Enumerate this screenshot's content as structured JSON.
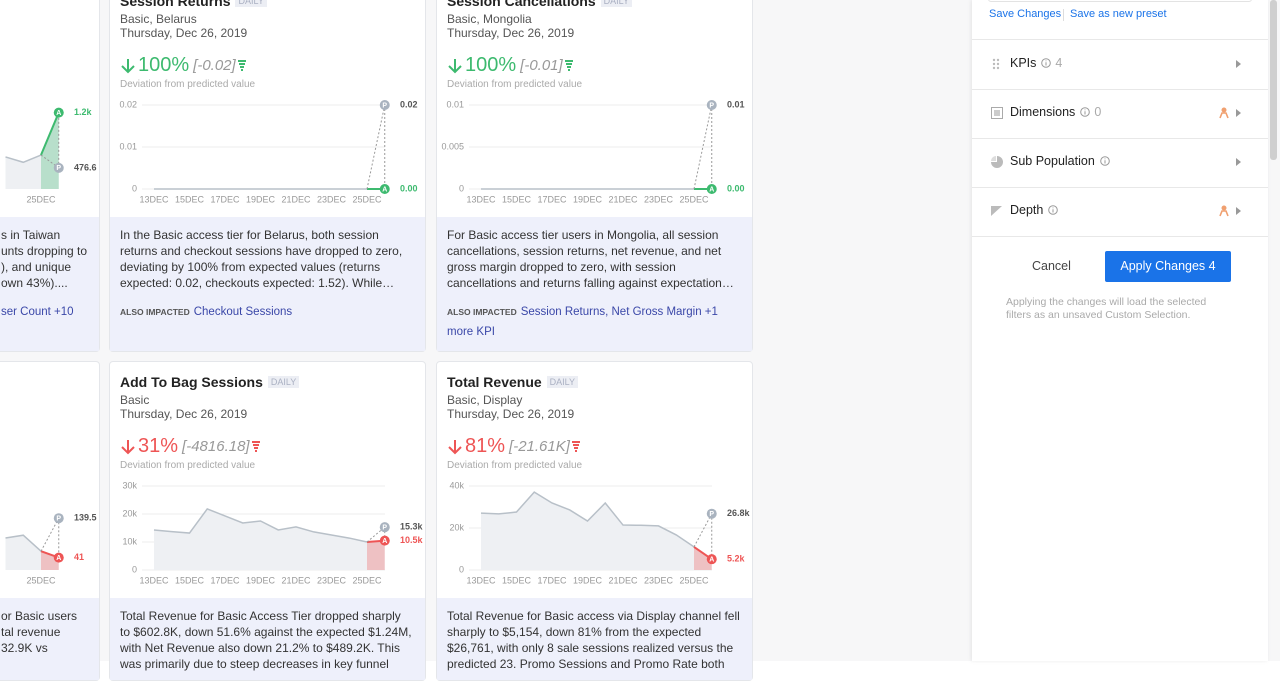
{
  "markers": {
    "predicted": "P",
    "actual": "A"
  },
  "cards": [
    {
      "chart": {
        "color": "#3dba6f",
        "ylim": [
          200,
          1300
        ],
        "categories": [
          null,
          null,
          "25DEC",
          null
        ],
        "values": [
          620,
          550,
          645,
          1200
        ],
        "actual_label": "1.2k",
        "predicted": 476.6
      },
      "summary_lines": [
        "s in Taiwan",
        "unts dropping to",
        "), and unique",
        "own 43%)...."
      ],
      "also_impacted": "ser Count +10"
    },
    {
      "title": "Session Returns",
      "frequency": "DAILY",
      "segment": "Basic, Belarus",
      "date": "Thursday, Dec 26, 2019",
      "change": "100%",
      "delta": "[-0.02]",
      "deviation_label": "Deviation from predicted value",
      "chart": {
        "color": "#3dba6f",
        "ylim": [
          0,
          0.02
        ],
        "yticks": [
          0,
          0.01,
          0.02
        ],
        "categories": [
          "13DEC",
          null,
          "15DEC",
          null,
          "17DEC",
          null,
          "19DEC",
          null,
          "21DEC",
          null,
          "23DEC",
          null,
          "25DEC",
          null
        ],
        "values": [
          0,
          0,
          0,
          0,
          0,
          0,
          0,
          0,
          0,
          0,
          0,
          0,
          0,
          0
        ],
        "actual_label": "0.00",
        "predicted": 0.02
      },
      "summary_lines": [
        "In the Basic access tier for Belarus, both session",
        "returns and checkout sessions have dropped to zero,",
        "deviating by 100% from expected values (returns",
        "expected: 0.02, checkouts expected: 1.52). While…"
      ],
      "also_impacted_label": "ALSO IMPACTED",
      "also_impacted": "Checkout Sessions"
    },
    {
      "title": "Session Cancellations",
      "frequency": "DAILY",
      "segment": "Basic, Mongolia",
      "date": "Thursday, Dec 26, 2019",
      "change": "100%",
      "delta": "[-0.01]",
      "deviation_label": "Deviation from predicted value",
      "chart": {
        "color": "#3dba6f",
        "ylim": [
          0,
          0.01
        ],
        "yticks": [
          0,
          0.005,
          0.01
        ],
        "categories": [
          "13DEC",
          null,
          "15DEC",
          null,
          "17DEC",
          null,
          "19DEC",
          null,
          "21DEC",
          null,
          "23DEC",
          null,
          "25DEC",
          null
        ],
        "values": [
          0,
          0,
          0,
          0,
          0,
          0,
          0,
          0,
          0,
          0,
          0,
          0,
          0,
          0
        ],
        "actual_label": "0.00",
        "predicted": 0.01
      },
      "summary_lines": [
        "For Basic access tier users in Mongolia, all session",
        "cancellations, session returns, net revenue, and net",
        "gross margin dropped to zero, with session",
        "cancellations and returns falling against expectation…"
      ],
      "also_impacted_label": "ALSO IMPACTED",
      "also_impacted": "Session Returns, Net Gross Margin +1 more KPI"
    },
    {
      "chart": {
        "color": "#ee5555",
        "ylim": [
          10,
          220
        ],
        "categories": [
          null,
          null,
          "25DEC",
          null
        ],
        "values": [
          90,
          97,
          57,
          41
        ],
        "predicted": 139.5
      },
      "summary_lines": [
        "or Basic users",
        "tal revenue",
        "32.9K vs"
      ]
    },
    {
      "title": "Add To Bag Sessions",
      "frequency": "DAILY",
      "segment": "Basic",
      "date": "Thursday, Dec 26, 2019",
      "change": "31%",
      "delta": "[-4816.18]",
      "deviation_label": "Deviation from predicted value",
      "chart": {
        "color": "#ee5555",
        "ylim": [
          0,
          30000
        ],
        "yticks": [
          0,
          {
            "value": 10000,
            "label": "10k"
          },
          {
            "value": 20000,
            "label": "20k"
          },
          {
            "value": 30000,
            "label": "30k"
          }
        ],
        "categories": [
          "13DEC",
          null,
          "15DEC",
          null,
          "17DEC",
          null,
          "19DEC",
          null,
          "21DEC",
          null,
          "23DEC",
          null,
          "25DEC",
          null
        ],
        "values": [
          14300,
          13700,
          13200,
          21800,
          19300,
          16800,
          17500,
          14300,
          15400,
          13600,
          12500,
          11400,
          10000,
          10500
        ],
        "actual_label": "10.5k",
        "predicted": 15300,
        "predicted_label": "15.3k"
      },
      "summary_lines": [
        "Total Revenue for Basic Access Tier dropped sharply",
        "to $602.8K, down 51.6% against the expected $1.24M,",
        "with Net Revenue also down 21.2% to $489.2K. This",
        "was primarily due to steep decreases in key funnel"
      ]
    },
    {
      "title": "Total Revenue",
      "frequency": "DAILY",
      "segment": "Basic, Display",
      "date": "Thursday, Dec 26, 2019",
      "change": "81%",
      "delta": "[-21.61K]",
      "deviation_label": "Deviation from predicted value",
      "chart": {
        "color": "#ee5555",
        "ylim": [
          0,
          40000
        ],
        "yticks": [
          0,
          {
            "value": 20000,
            "label": "20k"
          },
          {
            "value": 40000,
            "label": "40k"
          }
        ],
        "categories": [
          "13DEC",
          null,
          "15DEC",
          null,
          "17DEC",
          null,
          "19DEC",
          null,
          "21DEC",
          null,
          "23DEC",
          null,
          "25DEC",
          null
        ],
        "values": [
          27100,
          26700,
          27600,
          37100,
          31900,
          28600,
          23300,
          31900,
          21400,
          21300,
          21000,
          16700,
          11000,
          5154
        ],
        "actual_label": "5.2k",
        "predicted": 26800,
        "predicted_label": "26.8k"
      },
      "summary_lines": [
        "Total Revenue for Basic access via Display channel fell",
        "sharply to $5,154, down 81% from the expected",
        "$26,761, with only 8 sale sessions realized versus the",
        "predicted 23. Promo Sessions and Promo Rate both"
      ]
    }
  ],
  "panel": {
    "save_changes": "Save Changes",
    "save_preset": "Save as new preset",
    "rows": [
      {
        "label": "KPIs",
        "count": 4
      },
      {
        "label": "Dimensions",
        "count": 0
      },
      {
        "label": "Sub Population"
      },
      {
        "label": "Depth"
      }
    ],
    "cancel": "Cancel",
    "apply": "Apply Changes 4",
    "note": "Applying the changes will load the selected filters as an unsaved Custom Selection."
  }
}
